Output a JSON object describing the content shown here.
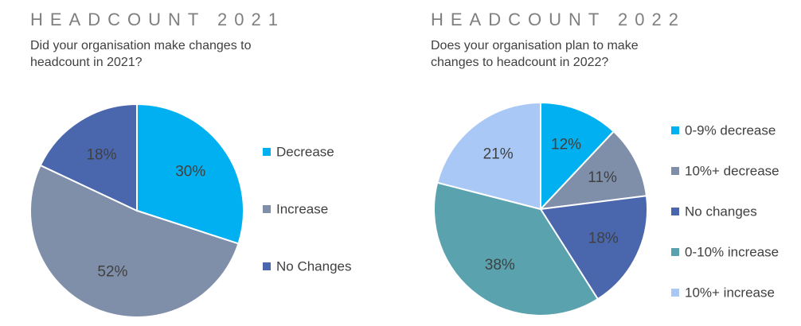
{
  "chart_data": [
    {
      "type": "pie",
      "heading": "HEADCOUNT 2021",
      "question": "Did your organisation make changes to headcount in 2021?",
      "legend_position": "right",
      "slices": [
        {
          "label": "Decrease",
          "value": 30,
          "display": "30%",
          "color": "#00B0F0"
        },
        {
          "label": "Increase",
          "value": 52,
          "display": "52%",
          "color": "#7F8FA9"
        },
        {
          "label": "No Changes",
          "value": 18,
          "display": "18%",
          "color": "#4A66AC"
        }
      ]
    },
    {
      "type": "pie",
      "heading": "HEADCOUNT 2022",
      "question": "Does your organisation plan to make changes to headcount in 2022?",
      "legend_position": "right",
      "slices": [
        {
          "label": "0-9% decrease",
          "value": 12,
          "display": "12%",
          "color": "#00B0F0"
        },
        {
          "label": "10%+ decrease",
          "value": 11,
          "display": "11%",
          "color": "#7F8FA9"
        },
        {
          "label": "No changes",
          "value": 18,
          "display": "18%",
          "color": "#4A66AC"
        },
        {
          "label": "0-10% increase",
          "value": 38,
          "display": "38%",
          "color": "#5AA2AE"
        },
        {
          "label": "10%+ increase",
          "value": 21,
          "display": "21%",
          "color": "#A9C8F5"
        }
      ]
    }
  ]
}
